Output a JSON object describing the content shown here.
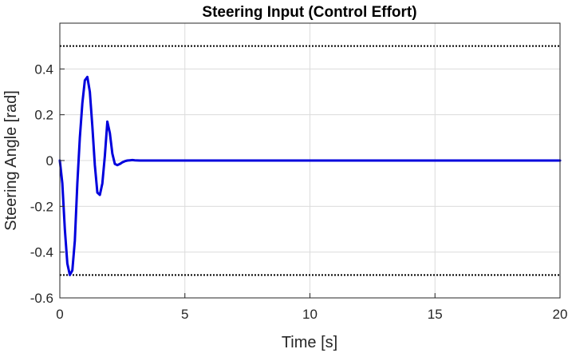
{
  "chart_data": {
    "type": "line",
    "title": "Steering Input (Control Effort)",
    "xlabel": "Time [s]",
    "ylabel": "Steering Angle [rad]",
    "xlim": [
      0,
      20
    ],
    "ylim": [
      -0.6,
      0.6
    ],
    "x_ticks": [
      "0",
      "5",
      "10",
      "15",
      "20"
    ],
    "y_ticks": [
      "0.4",
      "0.2",
      "0",
      "-0.2",
      "-0.4",
      "-0.6"
    ],
    "grid": true,
    "colors": {
      "series": "#0000dd",
      "limits": "#000000",
      "grid": "#dcdcdc"
    },
    "series": [
      {
        "x": [
          0,
          0.1,
          0.2,
          0.3,
          0.4,
          0.5,
          0.6,
          0.7,
          0.8,
          0.9,
          1.0,
          1.1,
          1.2,
          1.3,
          1.4,
          1.5,
          1.6,
          1.7,
          1.8,
          1.9,
          2.0,
          2.1,
          2.2,
          2.3,
          2.4,
          2.5,
          2.6,
          2.7,
          2.8,
          2.9,
          3.0,
          3.2,
          3.5,
          4.0,
          5.0,
          10.0,
          15.0,
          20.0
        ],
        "y": [
          0,
          -0.1,
          -0.3,
          -0.45,
          -0.5,
          -0.48,
          -0.35,
          -0.1,
          0.1,
          0.25,
          0.35,
          0.365,
          0.3,
          0.15,
          -0.02,
          -0.14,
          -0.15,
          -0.1,
          0.02,
          0.17,
          0.12,
          0.03,
          -0.015,
          -0.02,
          -0.015,
          -0.008,
          -0.003,
          0.0,
          0.001,
          0.002,
          0.001,
          0.0,
          0.0,
          0.0,
          0.0,
          0.0,
          0.0,
          0.0
        ]
      }
    ],
    "limit_lines": [
      0.5,
      -0.5
    ]
  }
}
